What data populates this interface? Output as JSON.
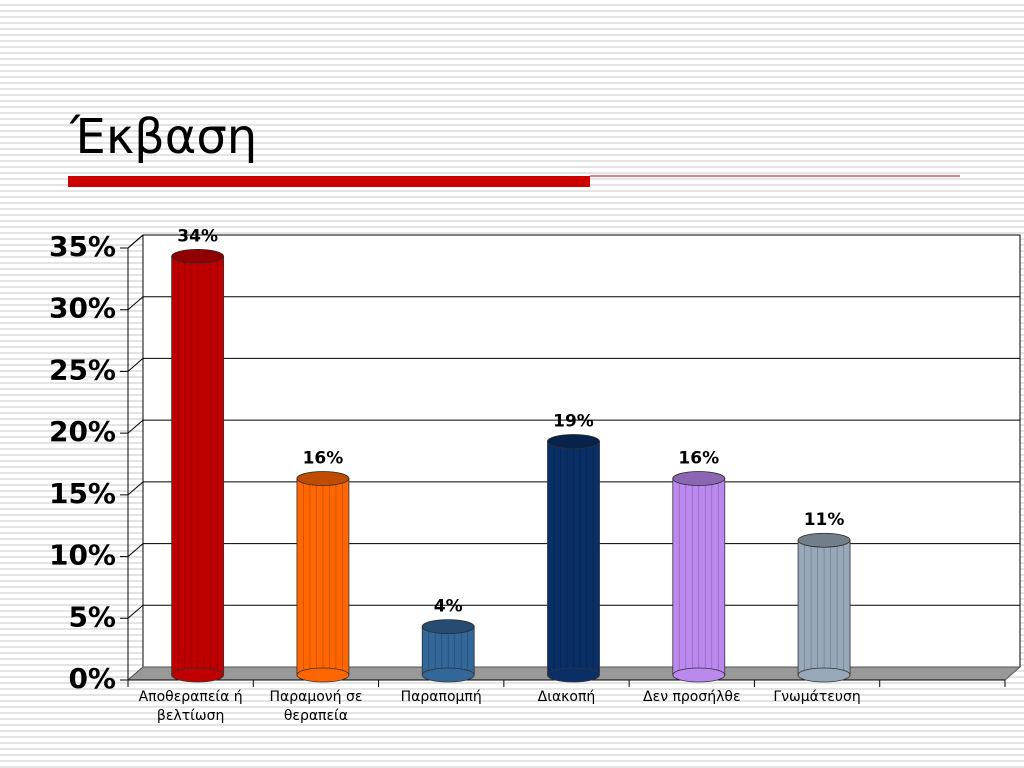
{
  "chart_data": {
    "type": "bar",
    "title": "Έκβαση",
    "categories": [
      "Αποθεραπεία ή βελτίωση",
      "Παραμονή σε θεραπεία",
      "Παραπομπή",
      "Διακοπή",
      "Δεν προσήλθε",
      "Γνωμάτευση",
      null
    ],
    "values": [
      34,
      16,
      4,
      19,
      16,
      11,
      null
    ],
    "value_labels": [
      "34%",
      "16%",
      "4%",
      "19%",
      "16%",
      "11%",
      null
    ],
    "colors": [
      "#c00000",
      "#ff6600",
      "#336699",
      "#0a2f66",
      "#bb88ee",
      "#98a8b8",
      null
    ],
    "ylim": [
      0,
      35
    ],
    "yticks": [
      {
        "value": 0,
        "label": "0%"
      },
      {
        "value": 5,
        "label": "5%"
      },
      {
        "value": 10,
        "label": "10%"
      },
      {
        "value": 15,
        "label": "15%"
      },
      {
        "value": 20,
        "label": "20%"
      },
      {
        "value": 25,
        "label": "25%"
      },
      {
        "value": 30,
        "label": "30%"
      },
      {
        "value": 35,
        "label": "35%"
      }
    ],
    "grid": true
  }
}
